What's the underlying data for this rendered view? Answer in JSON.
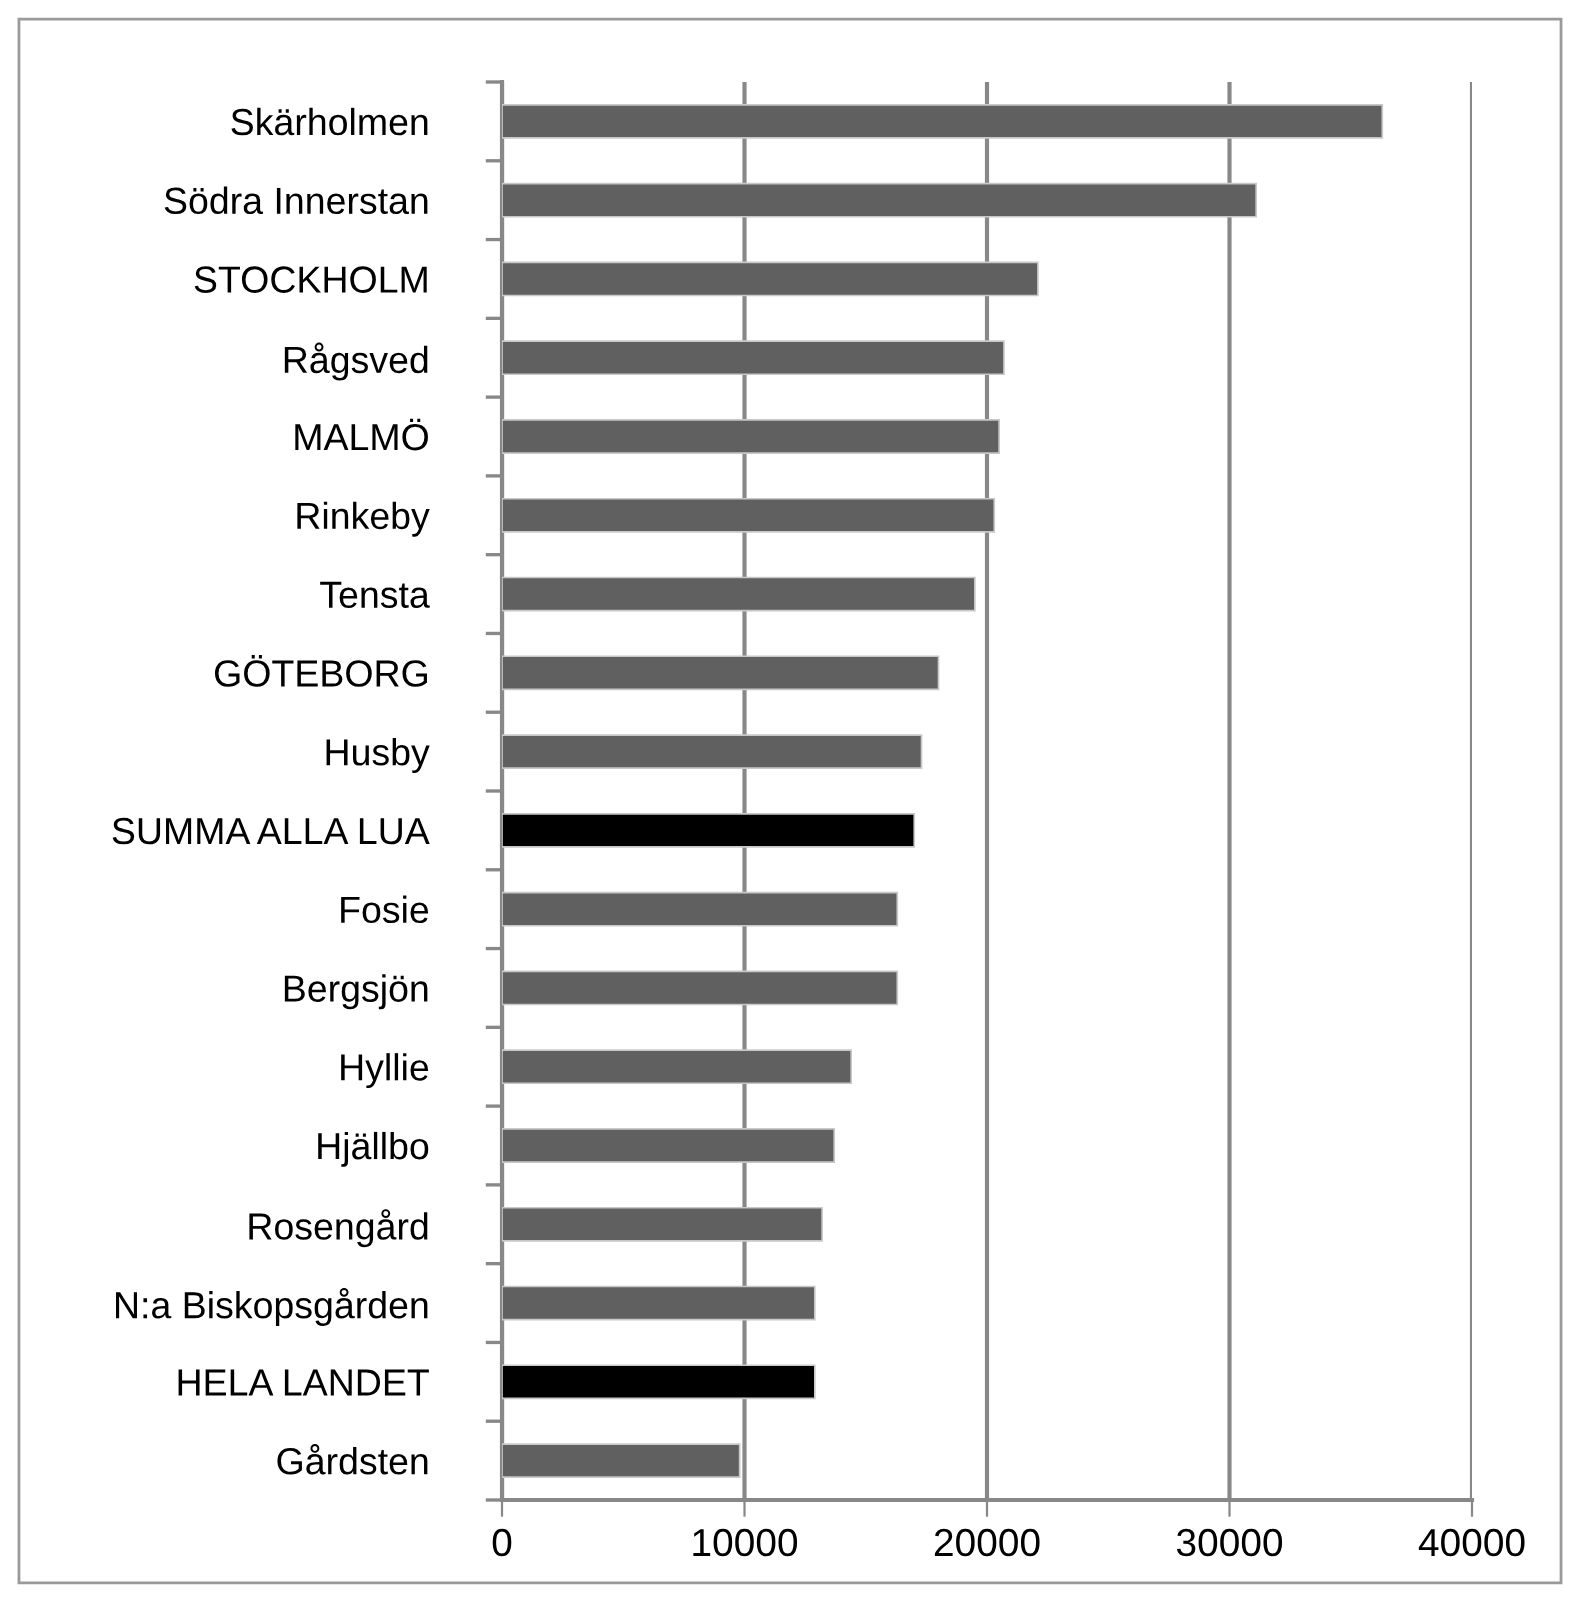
{
  "chart_data": {
    "type": "bar",
    "orientation": "horizontal",
    "categories": [
      "Skärholmen",
      "Södra Innerstan",
      "STOCKHOLM",
      "Rågsved",
      "MALMÖ",
      "Rinkeby",
      "Tensta",
      "GÖTEBORG",
      "Husby",
      "SUMMA ALLA LUA",
      "Fosie",
      "Bergsjön",
      "Hyllie",
      "Hjällbo",
      "Rosengård",
      "N:a Biskopsgården",
      "HELA LANDET",
      "Gårdsten"
    ],
    "values": [
      36300,
      31100,
      22100,
      20700,
      20500,
      20300,
      19500,
      18000,
      17300,
      17000,
      16300,
      16300,
      14400,
      13700,
      13200,
      12900,
      12900,
      9800
    ],
    "colors": [
      "#606060",
      "#606060",
      "#606060",
      "#606060",
      "#606060",
      "#606060",
      "#606060",
      "#606060",
      "#606060",
      "#000000",
      "#606060",
      "#606060",
      "#606060",
      "#606060",
      "#606060",
      "#606060",
      "#000000",
      "#606060"
    ],
    "xlim": [
      0,
      40000
    ],
    "xticks": [
      0,
      10000,
      20000,
      30000,
      40000
    ],
    "grid": "x"
  }
}
